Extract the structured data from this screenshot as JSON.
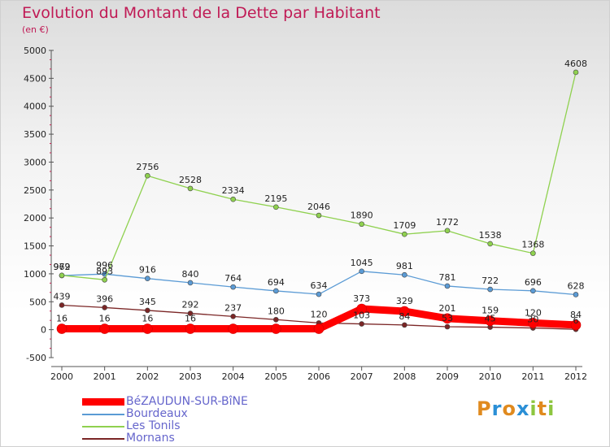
{
  "title": "Evolution du Montant de la Dette par Habitant",
  "unit": "(en €)",
  "logo": {
    "letters": [
      "P",
      "r",
      "o",
      "x",
      "i",
      "t",
      "i"
    ],
    "colors": [
      "#e08a1e",
      "#2b8fd6",
      "#e08a1e",
      "#2b8fd6",
      "#8dc63f",
      "#e08a1e",
      "#8dc63f"
    ]
  },
  "chart_data": {
    "type": "line",
    "title": "Evolution du Montant de la Dette par Habitant",
    "ylabel": "(en €)",
    "xlabel": "",
    "x": [
      "2000",
      "2001",
      "2002",
      "2003",
      "2004",
      "2005",
      "2006",
      "2007",
      "2008",
      "2009",
      "2010",
      "2011",
      "2012"
    ],
    "ylim": [
      -500,
      5000
    ],
    "yticks": [
      "-500",
      "0",
      "500",
      "1000",
      "1500",
      "2000",
      "2500",
      "3000",
      "3500",
      "4000",
      "4500",
      "5000"
    ],
    "grid": false,
    "legend": "bottom-left",
    "series": [
      {
        "name": "BéZAUDUN-SUR-BîNE",
        "color": "#ff0000",
        "values": [
          16,
          16,
          16,
          16,
          16,
          16,
          16,
          373,
          329,
          201,
          159,
          120,
          84
        ],
        "labels": [
          "16",
          "16",
          "16",
          "16",
          "",
          "",
          "",
          "373",
          "329",
          "201",
          "159",
          "120",
          "84"
        ]
      },
      {
        "name": "Bourdeaux",
        "color": "#5b9bd5",
        "values": [
          969,
          996,
          916,
          840,
          764,
          694,
          634,
          1045,
          981,
          781,
          722,
          696,
          628
        ],
        "labels": [
          "969",
          "996",
          "916",
          "840",
          "764",
          "694",
          "634",
          "1045",
          "981",
          "781",
          "722",
          "696",
          "628"
        ]
      },
      {
        "name": "Les Tonils",
        "color": "#8fd14f",
        "values": [
          972,
          893,
          2756,
          2528,
          2334,
          2195,
          2046,
          1890,
          1709,
          1772,
          1538,
          1368,
          4608
        ],
        "labels": [
          "972",
          "893",
          "2756",
          "2528",
          "2334",
          "2195",
          "2046",
          "1890",
          "1709",
          "1772",
          "1538",
          "1368",
          "4608"
        ]
      },
      {
        "name": "Mornans",
        "color": "#7b2626",
        "values": [
          439,
          396,
          345,
          292,
          237,
          180,
          120,
          103,
          84,
          53,
          45,
          30,
          6
        ],
        "labels": [
          "439",
          "396",
          "345",
          "292",
          "237",
          "180",
          "120",
          "103",
          "84",
          "53",
          "45",
          "30",
          "6"
        ]
      }
    ]
  }
}
